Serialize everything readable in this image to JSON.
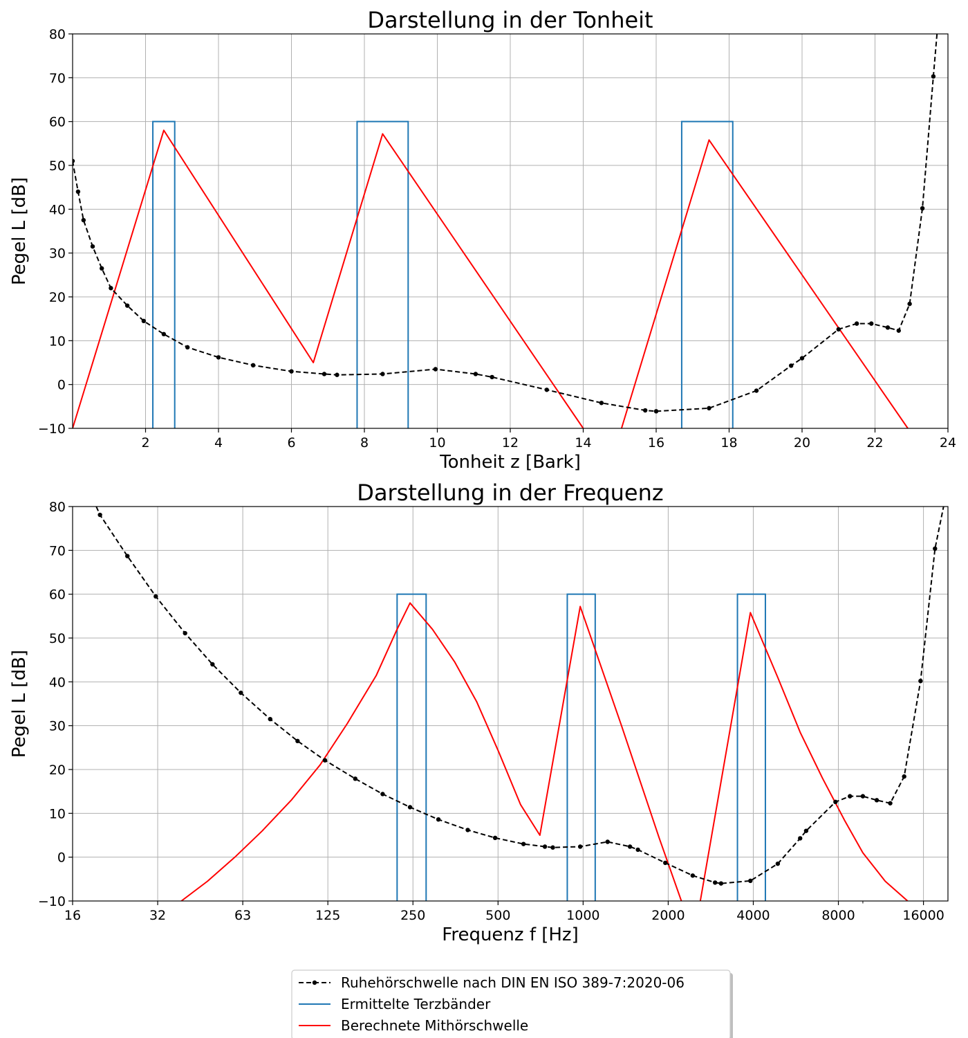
{
  "colors": {
    "threshold": "#000000",
    "bands": "#1f77b4",
    "masking": "#ff0000",
    "grid": "#b0b0b0"
  },
  "legend": {
    "placement": "bottom-center",
    "entries": [
      "Ruhehörschwelle nach DIN EN ISO 389-7:2020-06",
      "Ermittelte Terzbänder",
      "Berechnete Mithörschwelle"
    ]
  },
  "chart_data": [
    {
      "type": "line",
      "title": "Darstellung in der Tonheit",
      "xlabel": "Tonheit z [Bark]",
      "ylabel": "Pegel L [dB]",
      "xlim": [
        0,
        24
      ],
      "ylim": [
        -10,
        80
      ],
      "xticks": [
        "2",
        "4",
        "6",
        "8",
        "10",
        "12",
        "14",
        "16",
        "18",
        "20",
        "22",
        "24"
      ],
      "yticks": [
        "−10",
        "0",
        "10",
        "20",
        "30",
        "40",
        "50",
        "60",
        "70",
        "80"
      ],
      "grid": true,
      "series": [
        {
          "name": "Ruhehörschwelle nach DIN EN ISO 389-7:2020-06",
          "style": "dashed-dots",
          "x": [
            0.0,
            0.15,
            0.3,
            0.55,
            0.8,
            1.05,
            1.5,
            1.95,
            2.5,
            3.15,
            4.0,
            4.95,
            6.0,
            6.9,
            7.25,
            8.5,
            9.95,
            11.05,
            11.5,
            13.0,
            14.5,
            15.7,
            16.0,
            17.45,
            18.75,
            19.7,
            20.0,
            21.0,
            21.5,
            21.9,
            22.35,
            22.65,
            22.95,
            23.3,
            23.6,
            23.7
          ],
          "y": [
            51,
            44,
            37.5,
            31.5,
            26.5,
            22,
            18,
            14.5,
            11.5,
            8.5,
            6.2,
            4.4,
            3,
            2.4,
            2.2,
            2.4,
            3.5,
            2.4,
            1.7,
            -1.2,
            -4.2,
            -5.9,
            -6.1,
            -5.4,
            -1.4,
            4.3,
            6,
            12.6,
            13.9,
            13.9,
            13,
            12.3,
            18.4,
            40.2,
            70.3,
            80
          ]
        },
        {
          "name": "Ermittelte Terzbänder",
          "style": "rectangles",
          "bands": [
            {
              "z_from": 2.2,
              "z_to": 2.8,
              "level": 60
            },
            {
              "z_from": 7.8,
              "z_to": 9.2,
              "level": 60
            },
            {
              "z_from": 16.7,
              "z_to": 18.1,
              "level": 60
            }
          ]
        },
        {
          "name": "Berechnete Mithörschwelle",
          "style": "solid",
          "segments": [
            {
              "x": [
                0.0,
                2.5,
                6.6,
                8.5,
                14.0
              ],
              "y": [
                -10,
                58,
                5,
                57.2,
                -10
              ]
            },
            {
              "x": [
                15.05,
                17.45,
                22.9
              ],
              "y": [
                -10,
                55.8,
                -10
              ]
            }
          ]
        }
      ]
    },
    {
      "type": "line",
      "title": "Darstellung in der Frequenz",
      "xlabel": "Frequenz f [Hz]",
      "ylabel": "Pegel L [dB]",
      "xscale": "log2",
      "xlim": [
        16,
        20000
      ],
      "ylim": [
        -10,
        80
      ],
      "xticks": [
        "16",
        "32",
        "63",
        "125",
        "250",
        "500",
        "1000",
        "2000",
        "4000",
        "8000",
        "16000"
      ],
      "yticks": [
        "−10",
        "0",
        "10",
        "20",
        "30",
        "40",
        "50",
        "60",
        "70",
        "80"
      ],
      "grid": true,
      "series": [
        {
          "name": "Ruhehörschwelle nach DIN EN ISO 389-7:2020-06",
          "style": "dashed-dots",
          "x": [
            19.4,
            20,
            25,
            31.5,
            40,
            50,
            63,
            80,
            100,
            125,
            160,
            200,
            250,
            315,
            400,
            500,
            630,
            750,
            800,
            1000,
            1250,
            1500,
            1600,
            2000,
            2500,
            3000,
            3150,
            4000,
            5000,
            6000,
            6300,
            8000,
            9000,
            10000,
            11200,
            12500,
            14000,
            16000,
            18000,
            19300
          ],
          "y": [
            80,
            78.1,
            68.7,
            59.5,
            51.1,
            44,
            37.5,
            31.5,
            26.5,
            22.1,
            17.9,
            14.4,
            11.4,
            8.6,
            6.2,
            4.4,
            3,
            2.4,
            2.2,
            2.4,
            3.5,
            2.4,
            1.7,
            -1.3,
            -4.2,
            -5.8,
            -6,
            -5.4,
            -1.5,
            4.3,
            6,
            12.6,
            13.9,
            13.9,
            13,
            12.3,
            18.4,
            40.2,
            70.4,
            80
          ]
        },
        {
          "name": "Ermittelte Terzbänder",
          "style": "rectangles",
          "bands": [
            {
              "f_from": 225,
              "f_to": 285,
              "level": 60
            },
            {
              "f_from": 900,
              "f_to": 1130,
              "level": 60
            },
            {
              "f_from": 3600,
              "f_to": 4520,
              "level": 60
            }
          ]
        },
        {
          "name": "Berechnete Mithörschwelle",
          "style": "solid",
          "segments": [
            {
              "x": [
                38.8,
                48,
                60,
                75,
                95,
                120,
                150,
                190,
                225,
                250,
                300,
                360,
                430,
                515,
                615,
                720,
                1000,
                1400,
                1900,
                2280
              ],
              "y": [
                -10,
                -5.5,
                0,
                6,
                13,
                21,
                30.5,
                41.5,
                52,
                58,
                52,
                44.5,
                35.5,
                24,
                12,
                5,
                57.2,
                30,
                4.5,
                -10
              ]
            },
            {
              "x": [
                2660,
                4000,
                5000,
                6000,
                7200,
                8600,
                10000,
                12000,
                14400
              ],
              "y": [
                -10,
                55.8,
                41,
                28.5,
                18,
                8.5,
                1,
                -5.5,
                -10
              ]
            }
          ]
        }
      ]
    }
  ]
}
